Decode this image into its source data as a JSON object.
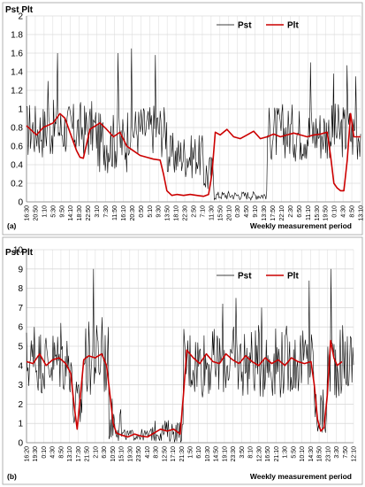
{
  "chart_data": [
    {
      "type": "line",
      "panel_label": "(a)",
      "y_axis_title": "Pst  Plt",
      "xlabel": "Weekly measurement period",
      "ylim": [
        0,
        2
      ],
      "yticks": [
        "0",
        "0.2",
        "0.4",
        "0.6",
        "0.8",
        "1",
        "1.2",
        "1.4",
        "1.6",
        "1.8",
        "2"
      ],
      "x_tick_labels": [
        "16:30",
        "20:50",
        "1:10",
        "5:30",
        "9:50",
        "14:10",
        "18:30",
        "22:50",
        "3:10",
        "7:30",
        "11:50",
        "16:10",
        "20:30",
        "0:50",
        "5:10",
        "9:30",
        "13:50",
        "18:10",
        "22:30",
        "2:50",
        "7:10",
        "11:30",
        "15:50",
        "20:10",
        "0:30",
        "4:50",
        "9:10",
        "13:30",
        "17:50",
        "22:10",
        "2:30",
        "6:50",
        "11:10",
        "15:30",
        "19:50",
        "0:10",
        "4:30",
        "8:50",
        "13:10"
      ],
      "legend": [
        "Pst",
        "Plt"
      ],
      "grid": true,
      "series": [
        {
          "name": "Pst",
          "color": "#000000",
          "segments": [
            {
              "start": 0,
              "end": 21,
              "mean": 0.78,
              "amp": 0.32
            },
            {
              "start": 21,
              "end": 30,
              "mean": 0.65,
              "amp": 0.35
            },
            {
              "start": 30,
              "end": 42,
              "mean": 0.78,
              "amp": 0.3
            },
            {
              "start": 42,
              "end": 53,
              "mean": 0.5,
              "amp": 0.25
            },
            {
              "start": 53,
              "end": 56,
              "mean": 0.3,
              "amp": 0.25
            },
            {
              "start": 56,
              "end": 72,
              "mean": 0.07,
              "amp": 0.05
            },
            {
              "start": 72,
              "end": 100,
              "mean": 0.75,
              "amp": 0.32
            }
          ],
          "peaks": [
            {
              "x": 6.5,
              "y": 1.3
            },
            {
              "x": 9.2,
              "y": 1.6
            },
            {
              "x": 27.5,
              "y": 1.6
            },
            {
              "x": 31.5,
              "y": 1.65
            },
            {
              "x": 38.5,
              "y": 1.58
            },
            {
              "x": 85,
              "y": 1.5
            },
            {
              "x": 92,
              "y": 1.38
            },
            {
              "x": 96,
              "y": 1.47
            },
            {
              "x": 98.5,
              "y": 1.35
            }
          ]
        },
        {
          "name": "Plt",
          "color": "#cc0000",
          "points": [
            [
              0,
              0.82
            ],
            [
              3,
              0.72
            ],
            [
              5,
              0.8
            ],
            [
              8,
              0.85
            ],
            [
              10,
              0.95
            ],
            [
              11.5,
              0.9
            ],
            [
              13,
              0.75
            ],
            [
              15,
              0.55
            ],
            [
              16,
              0.48
            ],
            [
              17,
              0.47
            ],
            [
              19,
              0.78
            ],
            [
              22,
              0.85
            ],
            [
              24,
              0.78
            ],
            [
              26,
              0.7
            ],
            [
              28,
              0.75
            ],
            [
              30,
              0.6
            ],
            [
              32,
              0.55
            ],
            [
              34,
              0.5
            ],
            [
              36,
              0.48
            ],
            [
              38,
              0.46
            ],
            [
              40,
              0.45
            ],
            [
              41,
              0.3
            ],
            [
              42,
              0.12
            ],
            [
              43.5,
              0.07
            ],
            [
              45,
              0.08
            ],
            [
              47,
              0.07
            ],
            [
              49,
              0.08
            ],
            [
              51,
              0.07
            ],
            [
              53,
              0.06
            ],
            [
              54.5,
              0.08
            ],
            [
              55.5,
              0.3
            ],
            [
              56.5,
              0.75
            ],
            [
              58,
              0.72
            ],
            [
              60,
              0.78
            ],
            [
              62,
              0.7
            ],
            [
              64,
              0.68
            ],
            [
              66,
              0.72
            ],
            [
              68,
              0.76
            ],
            [
              70,
              0.68
            ],
            [
              72,
              0.7
            ],
            [
              74,
              0.73
            ],
            [
              76,
              0.7
            ],
            [
              78,
              0.72
            ],
            [
              80,
              0.74
            ],
            [
              82,
              0.72
            ],
            [
              84,
              0.7
            ],
            [
              86,
              0.72
            ],
            [
              88,
              0.73
            ],
            [
              90,
              0.75
            ],
            [
              91,
              0.5
            ],
            [
              92,
              0.2
            ],
            [
              93,
              0.15
            ],
            [
              94,
              0.12
            ],
            [
              95,
              0.12
            ],
            [
              96,
              0.45
            ],
            [
              97,
              0.95
            ],
            [
              98,
              0.7
            ],
            [
              100,
              0.7
            ]
          ]
        }
      ]
    },
    {
      "type": "line",
      "panel_label": "(b)",
      "y_axis_title": "Pst  Plt",
      "xlabel": "Weekly measurement period",
      "ylim": [
        0,
        10
      ],
      "yticks": [
        "0",
        "1",
        "2",
        "3",
        "4",
        "5",
        "6",
        "7",
        "8",
        "9",
        "10"
      ],
      "x_tick_labels": [
        "16:20",
        "19:30",
        "0:10",
        "4:30",
        "8:50",
        "13:10",
        "17:30",
        "21:50",
        "2:10",
        "6:30",
        "10:50",
        "15:10",
        "19:30",
        "23:50",
        "4:10",
        "8:30",
        "12:50",
        "17:10",
        "21:30",
        "1:50",
        "6:10",
        "10:30",
        "14:50",
        "19:10",
        "23:30",
        "3:50",
        "8:10",
        "12:30",
        "16:50",
        "21:10",
        "1:30",
        "5:50",
        "10:10",
        "14:30",
        "18:50",
        "23:10",
        "3:30",
        "7:50",
        "12:10"
      ],
      "legend": [
        "Pst",
        "Plt"
      ],
      "grid": true,
      "series": [
        {
          "name": "Pst",
          "color": "#000000",
          "segments": [
            {
              "start": 0,
              "end": 14,
              "mean": 4.2,
              "amp": 1.8
            },
            {
              "start": 14,
              "end": 17,
              "mean": 1.8,
              "amp": 1.6
            },
            {
              "start": 17,
              "end": 25,
              "mean": 4.3,
              "amp": 2.0
            },
            {
              "start": 25,
              "end": 29,
              "mean": 1.2,
              "amp": 1.2
            },
            {
              "start": 29,
              "end": 38,
              "mean": 0.4,
              "amp": 0.3
            },
            {
              "start": 38,
              "end": 48,
              "mean": 0.6,
              "amp": 0.6
            },
            {
              "start": 48,
              "end": 88,
              "mean": 4.2,
              "amp": 1.9
            },
            {
              "start": 88,
              "end": 92,
              "mean": 1.5,
              "amp": 1.4
            },
            {
              "start": 92,
              "end": 100,
              "mean": 4.2,
              "amp": 2.0
            }
          ],
          "peaks": [
            {
              "x": 2.5,
              "y": 6.0
            },
            {
              "x": 10.5,
              "y": 6.2
            },
            {
              "x": 20.5,
              "y": 9.0
            },
            {
              "x": 23,
              "y": 6.5
            },
            {
              "x": 60,
              "y": 7.2
            },
            {
              "x": 64,
              "y": 7.5
            },
            {
              "x": 72,
              "y": 7.0
            },
            {
              "x": 86.5,
              "y": 8.4
            },
            {
              "x": 93,
              "y": 9.0
            }
          ]
        },
        {
          "name": "Plt",
          "color": "#cc0000",
          "points": [
            [
              0,
              4.2
            ],
            [
              2,
              4.1
            ],
            [
              4,
              4.6
            ],
            [
              6,
              4.0
            ],
            [
              8,
              4.3
            ],
            [
              10,
              4.4
            ],
            [
              12,
              4.1
            ],
            [
              13.5,
              3.6
            ],
            [
              14.5,
              2.0
            ],
            [
              15.5,
              0.7
            ],
            [
              16.5,
              2.5
            ],
            [
              17.5,
              4.3
            ],
            [
              19,
              4.5
            ],
            [
              21,
              4.4
            ],
            [
              23,
              4.6
            ],
            [
              24.5,
              4.0
            ],
            [
              25.5,
              2.5
            ],
            [
              26.5,
              1.0
            ],
            [
              27.5,
              0.5
            ],
            [
              29,
              0.4
            ],
            [
              31,
              0.3
            ],
            [
              33,
              0.45
            ],
            [
              35,
              0.35
            ],
            [
              37,
              0.3
            ],
            [
              39,
              0.5
            ],
            [
              41,
              0.7
            ],
            [
              43,
              0.6
            ],
            [
              45,
              0.7
            ],
            [
              47,
              0.45
            ],
            [
              48,
              2.5
            ],
            [
              49,
              4.8
            ],
            [
              51,
              4.4
            ],
            [
              53,
              4.1
            ],
            [
              55,
              4.6
            ],
            [
              57,
              4.2
            ],
            [
              59,
              4.1
            ],
            [
              61,
              4.6
            ],
            [
              63,
              4.3
            ],
            [
              65,
              4.1
            ],
            [
              67,
              4.5
            ],
            [
              69,
              4.2
            ],
            [
              71,
              4.0
            ],
            [
              73,
              4.4
            ],
            [
              75,
              4.1
            ],
            [
              77,
              4.3
            ],
            [
              79,
              4.0
            ],
            [
              81,
              4.4
            ],
            [
              83,
              4.2
            ],
            [
              85,
              4.1
            ],
            [
              87,
              4.2
            ],
            [
              88,
              3.0
            ],
            [
              89,
              1.2
            ],
            [
              90,
              0.6
            ],
            [
              91,
              0.8
            ],
            [
              92,
              2.5
            ],
            [
              93,
              5.3
            ],
            [
              94,
              4.4
            ],
            [
              95,
              4.0
            ],
            [
              96.5,
              4.2
            ]
          ]
        }
      ]
    }
  ]
}
